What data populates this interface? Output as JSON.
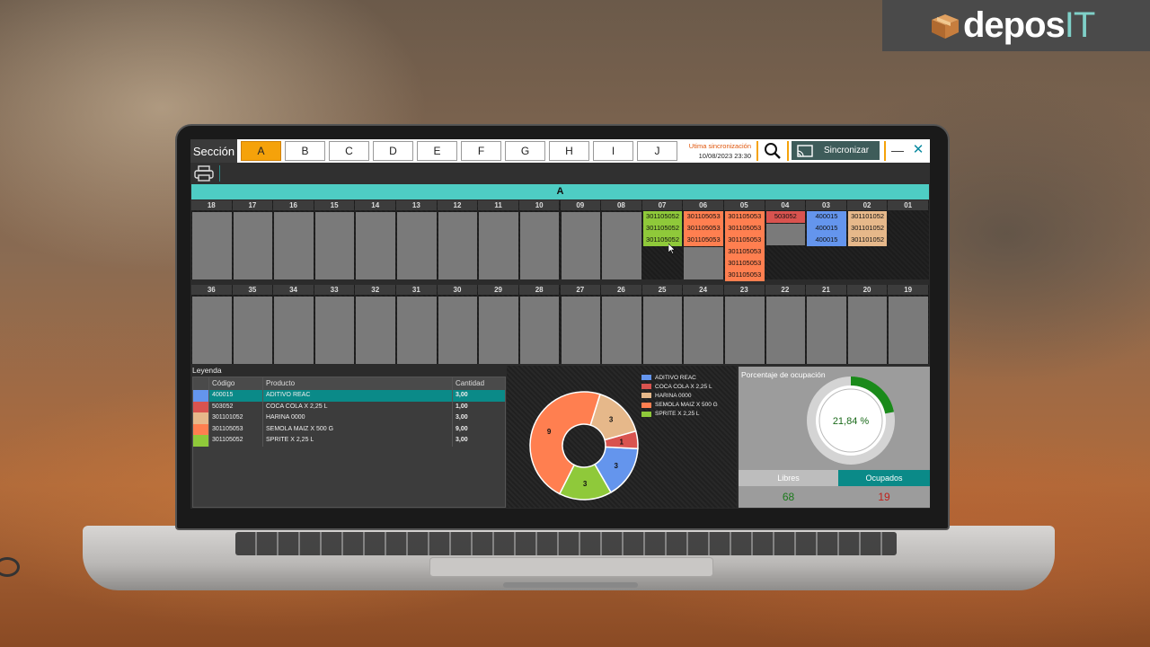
{
  "brand": {
    "name_main": "depos",
    "name_accent": "IT"
  },
  "topbar": {
    "section_label": "Sección",
    "tabs": [
      "A",
      "B",
      "C",
      "D",
      "E",
      "F",
      "G",
      "H",
      "I",
      "J"
    ],
    "active_tab": "A",
    "sync_label": "Utima sincronización",
    "sync_value": "10/08/2023 23:30",
    "sync_button": "Sincronizar",
    "minimize": "—",
    "close": "✕"
  },
  "section": {
    "title": "A"
  },
  "rack_top": [
    {
      "num": "18",
      "items": []
    },
    {
      "num": "17",
      "items": []
    },
    {
      "num": "16",
      "items": []
    },
    {
      "num": "15",
      "items": []
    },
    {
      "num": "14",
      "items": []
    },
    {
      "num": "13",
      "items": []
    },
    {
      "num": "12",
      "items": []
    },
    {
      "num": "11",
      "items": []
    },
    {
      "num": "10",
      "items": []
    },
    {
      "num": "09",
      "items": []
    },
    {
      "num": "08",
      "items": []
    },
    {
      "num": "07",
      "items": [
        {
          "code": "301105052",
          "color": "#8fc93a"
        },
        {
          "code": "301105052",
          "color": "#8fc93a"
        },
        {
          "code": "301105052",
          "color": "#8fc93a"
        }
      ]
    },
    {
      "num": "06",
      "items": [
        {
          "code": "301105053",
          "color": "#ff7f50"
        },
        {
          "code": "301105053",
          "color": "#ff7f50"
        },
        {
          "code": "301105053",
          "color": "#ff7f50"
        }
      ],
      "rest_empty": true
    },
    {
      "num": "05",
      "items": [
        {
          "code": "301105053",
          "color": "#ff7f50"
        },
        {
          "code": "301105053",
          "color": "#ff7f50"
        },
        {
          "code": "301105053",
          "color": "#ff7f50"
        },
        {
          "code": "301105053",
          "color": "#ff7f50"
        },
        {
          "code": "301105053",
          "color": "#ff7f50"
        },
        {
          "code": "301105053",
          "color": "#ff7f50"
        }
      ]
    },
    {
      "num": "04",
      "items": [
        {
          "code": "503052",
          "color": "#d9534f"
        }
      ],
      "short_empty": true
    },
    {
      "num": "03",
      "items": [
        {
          "code": "400015",
          "color": "#6495ed"
        },
        {
          "code": "400015",
          "color": "#6495ed"
        },
        {
          "code": "400015",
          "color": "#6495ed"
        }
      ]
    },
    {
      "num": "02",
      "items": [
        {
          "code": "301101052",
          "color": "#e6b88a"
        },
        {
          "code": "301101052",
          "color": "#e6b88a"
        },
        {
          "code": "301101052",
          "color": "#e6b88a"
        }
      ]
    },
    {
      "num": "01",
      "items": []
    }
  ],
  "rack_bottom": [
    "36",
    "35",
    "34",
    "33",
    "32",
    "31",
    "30",
    "29",
    "28",
    "27",
    "26",
    "25",
    "24",
    "23",
    "22",
    "21",
    "20",
    "19"
  ],
  "legend": {
    "title": "Leyenda",
    "headers": {
      "code": "Código",
      "product": "Producto",
      "qty": "Cantidad"
    },
    "rows": [
      {
        "color": "#6495ed",
        "code": "400015",
        "product": "ADITIVO REAC",
        "qty": "3,00"
      },
      {
        "color": "#d9534f",
        "code": "503052",
        "product": "COCA COLA X 2,25 L",
        "qty": "1,00"
      },
      {
        "color": "#e6b88a",
        "code": "301101052",
        "product": "HARINA 0000",
        "qty": "3,00"
      },
      {
        "color": "#ff7f50",
        "code": "301105053",
        "product": "SEMOLA MAIZ X 500 G",
        "qty": "9,00"
      },
      {
        "color": "#8fc93a",
        "code": "301105052",
        "product": "SPRITE X 2,25 L",
        "qty": "3,00"
      }
    ]
  },
  "chart_data": {
    "type": "pie",
    "categories": [
      "ADITIVO REAC",
      "COCA COLA X 2,25 L",
      "HARINA 0000",
      "SEMOLA MAIZ X 500 G",
      "SPRITE X 2,25 L"
    ],
    "values": [
      3,
      1,
      3,
      9,
      3
    ],
    "colors": [
      "#6495ed",
      "#d9534f",
      "#e6b88a",
      "#ff7f50",
      "#8fc93a"
    ],
    "legend_position": "top-right"
  },
  "occupancy": {
    "title": "Porcentaje de ocupación",
    "percent_label": "21,84 %",
    "percent": 21.84,
    "free_label": "Libres",
    "occupied_label": "Ocupados",
    "free_value": "68",
    "occupied_value": "19"
  }
}
